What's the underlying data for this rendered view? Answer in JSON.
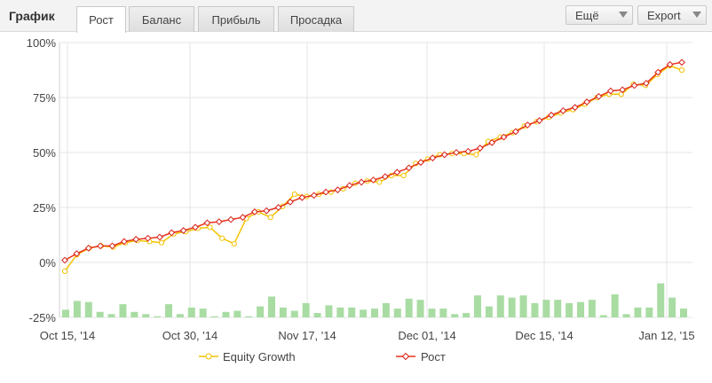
{
  "header": {
    "title": "График",
    "tabs": [
      {
        "label": "Рост",
        "active": true
      },
      {
        "label": "Баланс",
        "active": false
      },
      {
        "label": "Прибыль",
        "active": false
      },
      {
        "label": "Просадка",
        "active": false
      }
    ],
    "more_label": "Ещё",
    "export_label": "Export"
  },
  "colors": {
    "equity_line": "#f2c200",
    "growth_line": "#e8341c",
    "growth_marker": "#d8201a",
    "volume_bars": "#a9dca3",
    "grid": "#e4e4e4"
  },
  "chart_data": {
    "type": "line",
    "x_tick_labels": [
      "Oct 15, '14",
      "Oct 30, '14",
      "Nov 17, '14",
      "Dec 01, '14",
      "Dec 15, '14",
      "Jan 12, '15"
    ],
    "y_tick_labels": [
      "100%",
      "75%",
      "50%",
      "25%",
      "0%",
      "-25%"
    ],
    "ylim": [
      -25,
      100
    ],
    "series": [
      {
        "name": "Equity Growth",
        "values": [
          -4,
          3.5,
          6.5,
          7.5,
          7,
          9,
          10,
          9.5,
          9,
          13,
          14,
          15.5,
          16,
          11,
          8.5,
          20,
          23,
          20.5,
          25.5,
          31,
          30,
          31,
          32,
          33.5,
          36,
          37,
          36.5,
          39.5,
          39.5,
          45,
          47,
          49,
          49.5,
          49.5,
          49,
          55,
          57,
          59,
          62,
          64,
          66,
          68,
          69.5,
          72,
          75,
          76.5,
          76.5,
          81,
          80.5,
          85.5,
          89.5,
          87.5
        ]
      },
      {
        "name": "Рост",
        "values": [
          1,
          4,
          6.5,
          7.5,
          7.5,
          9.5,
          10.5,
          11,
          11.5,
          13.5,
          14.5,
          16,
          18,
          18.5,
          19.5,
          20.5,
          23,
          23.5,
          25,
          27.5,
          29.5,
          30.5,
          32,
          33,
          35,
          36.5,
          37.5,
          39,
          41,
          43,
          45.5,
          47.5,
          49,
          50,
          50.5,
          52,
          54.5,
          57,
          59.5,
          62.5,
          64.5,
          67,
          69,
          70.5,
          73,
          75.5,
          78,
          78.5,
          80.5,
          81.5,
          86.5,
          90,
          91
        ]
      }
    ],
    "volume_bars": [
      3.5,
      7.5,
      7,
      2.5,
      1.5,
      6,
      2.5,
      1.5,
      0.5,
      6,
      1.5,
      4.5,
      4,
      0.5,
      2.5,
      3,
      0.5,
      5,
      9.5,
      4.5,
      3,
      6.5,
      2,
      5.5,
      4.5,
      4.5,
      3.5,
      4,
      6.5,
      4,
      8.5,
      8,
      4,
      4,
      1.5,
      2,
      10,
      5,
      10,
      9,
      10,
      6.5,
      8,
      8,
      6.5,
      7,
      8,
      1,
      10.5,
      1.5,
      4.5,
      4.5,
      15.5,
      9,
      4
    ],
    "legend": [
      "Equity Growth",
      "Рост"
    ],
    "legend_position": "bottom",
    "grid": true
  }
}
